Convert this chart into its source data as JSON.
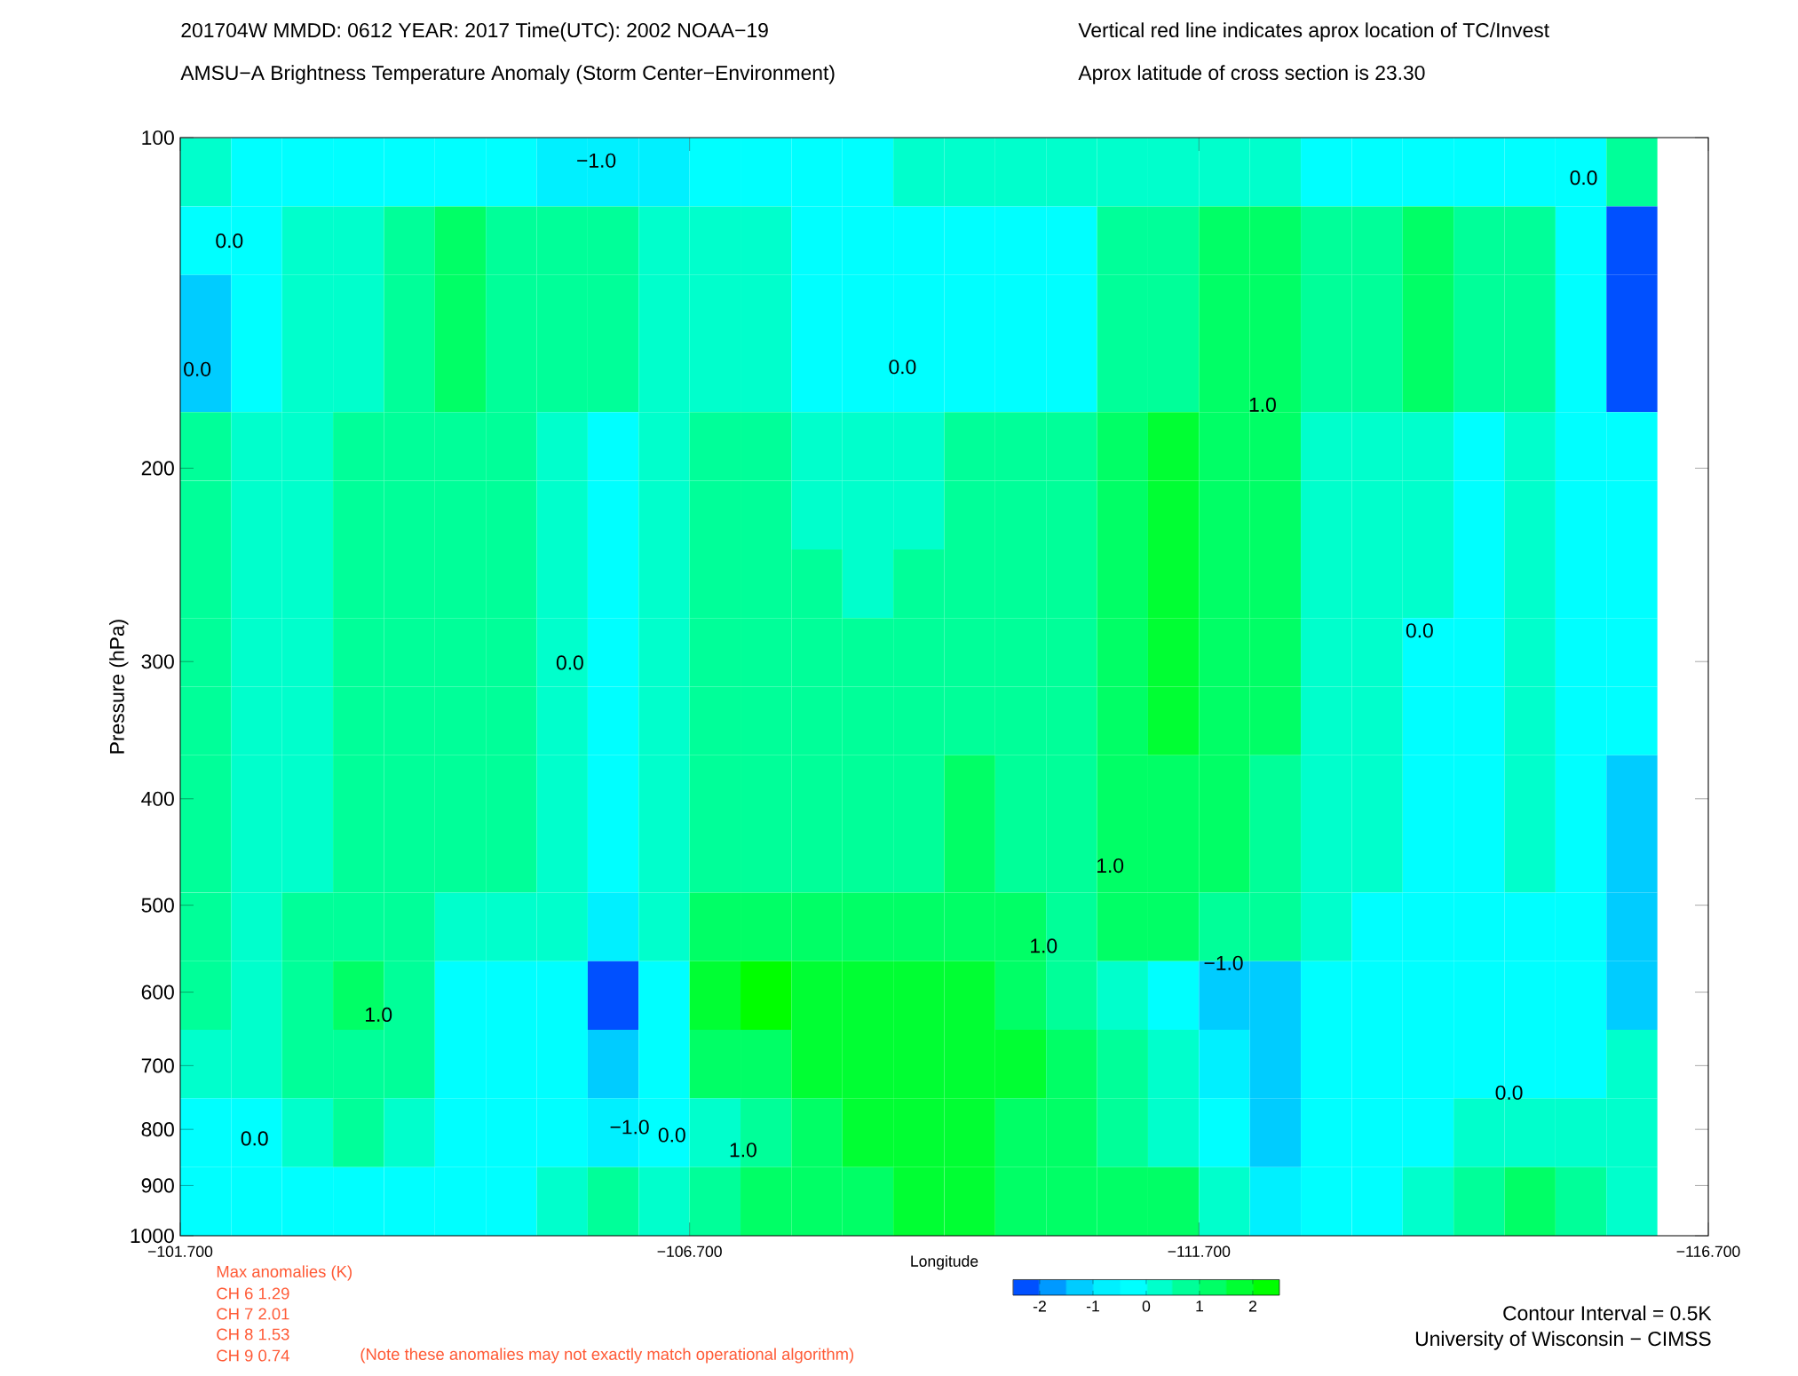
{
  "chart_data": {
    "type": "heatmap",
    "title": "201704W  MMDD: 0612 YEAR: 2017 Time(UTC): 2002 NOAA−19",
    "subtitle": "AMSU−A Brightness Temperature Anomaly (Storm Center−Environment)",
    "xlabel": "Longitude",
    "ylabel": "Pressure (hPa)",
    "x": [
      -101.95,
      -102.45,
      -102.95,
      -103.45,
      -103.95,
      -104.45,
      -104.95,
      -105.45,
      -105.95,
      -106.45,
      -106.95,
      -107.45,
      -107.95,
      -108.45,
      -108.95,
      -109.45,
      -109.95,
      -110.45,
      -110.95,
      -111.45,
      -111.95,
      -112.45,
      -112.95,
      -113.45,
      -113.95,
      -114.45,
      -114.95,
      -115.45,
      -115.95
    ],
    "y": [
      107.5,
      124.1,
      143.3,
      165.5,
      191.1,
      220.7,
      254.8,
      294.3,
      339.8,
      392.4,
      453.1,
      523.3,
      604.3,
      697.8,
      805.8,
      930.6
    ],
    "cells": [
      [
        0.25,
        -0.25,
        -0.25,
        -0.25,
        -0.25,
        -0.25,
        -0.25,
        -0.75,
        -0.75,
        -0.75,
        -0.25,
        -0.25,
        -0.25,
        -0.25,
        0.25,
        0.25,
        0.25,
        0.25,
        0.25,
        0.25,
        0.25,
        0.25,
        -0.25,
        -0.25,
        -0.25,
        -0.25,
        -0.25,
        -0.25,
        0.75
      ],
      [
        -0.25,
        -0.25,
        0.25,
        0.25,
        0.75,
        1.25,
        0.75,
        0.75,
        0.75,
        0.25,
        0.25,
        0.25,
        -0.25,
        -0.25,
        -0.25,
        -0.25,
        -0.25,
        -0.25,
        0.75,
        0.75,
        1.25,
        1.25,
        0.75,
        0.75,
        1.25,
        0.75,
        0.75,
        -0.25,
        -2.25
      ],
      [
        -1.25,
        -0.25,
        0.25,
        0.25,
        0.75,
        1.25,
        0.75,
        0.75,
        0.75,
        0.25,
        0.25,
        0.25,
        -0.25,
        -0.25,
        -0.25,
        -0.25,
        -0.25,
        -0.25,
        0.75,
        0.75,
        1.25,
        1.25,
        0.75,
        0.75,
        1.25,
        0.75,
        0.75,
        -0.25,
        -2.25
      ],
      [
        -1.25,
        -0.25,
        0.25,
        0.25,
        0.75,
        1.25,
        0.75,
        0.75,
        0.75,
        0.25,
        0.25,
        0.25,
        -0.25,
        -0.25,
        -0.25,
        -0.25,
        -0.25,
        -0.25,
        0.75,
        0.75,
        1.25,
        1.25,
        0.75,
        0.75,
        1.25,
        0.75,
        0.75,
        -0.25,
        -2.25
      ],
      [
        0.75,
        0.25,
        0.25,
        0.75,
        0.75,
        0.75,
        0.75,
        0.25,
        -0.25,
        0.25,
        0.75,
        0.75,
        0.25,
        0.25,
        0.25,
        0.75,
        0.75,
        0.75,
        1.25,
        1.75,
        1.25,
        1.25,
        0.25,
        0.25,
        0.25,
        -0.25,
        0.25,
        -0.25,
        -0.25
      ],
      [
        0.75,
        0.25,
        0.25,
        0.75,
        0.75,
        0.75,
        0.75,
        0.25,
        -0.25,
        0.25,
        0.75,
        0.75,
        0.25,
        0.25,
        0.25,
        0.75,
        0.75,
        0.75,
        1.25,
        1.75,
        1.25,
        1.25,
        0.25,
        0.25,
        0.25,
        -0.25,
        0.25,
        -0.25,
        -0.25
      ],
      [
        0.75,
        0.25,
        0.25,
        0.75,
        0.75,
        0.75,
        0.75,
        0.25,
        -0.25,
        0.25,
        0.75,
        0.75,
        0.75,
        0.25,
        0.75,
        0.75,
        0.75,
        0.75,
        1.25,
        1.75,
        1.25,
        1.25,
        0.25,
        0.25,
        0.25,
        -0.25,
        0.25,
        -0.25,
        -0.25
      ],
      [
        0.75,
        0.25,
        0.25,
        0.75,
        0.75,
        0.75,
        0.75,
        0.25,
        -0.25,
        0.25,
        0.75,
        0.75,
        0.75,
        0.75,
        0.75,
        0.75,
        0.75,
        0.75,
        1.25,
        1.75,
        1.25,
        1.25,
        0.25,
        0.25,
        -0.25,
        -0.25,
        0.25,
        -0.25,
        -0.25
      ],
      [
        0.75,
        0.25,
        0.25,
        0.75,
        0.75,
        0.75,
        0.75,
        0.25,
        -0.25,
        0.25,
        0.75,
        0.75,
        0.75,
        0.75,
        0.75,
        0.75,
        0.75,
        0.75,
        1.25,
        1.75,
        1.25,
        1.25,
        0.25,
        0.25,
        -0.25,
        -0.25,
        0.25,
        -0.25,
        -0.25
      ],
      [
        0.75,
        0.25,
        0.25,
        0.75,
        0.75,
        0.75,
        0.75,
        0.25,
        -0.25,
        0.25,
        0.75,
        0.75,
        0.75,
        0.75,
        0.75,
        1.25,
        0.75,
        0.75,
        1.25,
        1.25,
        1.25,
        0.75,
        0.25,
        0.25,
        -0.25,
        -0.25,
        0.25,
        -0.25,
        -1.25
      ],
      [
        0.75,
        0.25,
        0.25,
        0.75,
        0.75,
        0.75,
        0.75,
        0.25,
        -0.25,
        0.25,
        0.75,
        0.75,
        0.75,
        0.75,
        0.75,
        1.25,
        0.75,
        0.75,
        1.25,
        1.25,
        1.25,
        0.75,
        0.25,
        0.25,
        -0.25,
        -0.25,
        0.25,
        -0.25,
        -1.25
      ],
      [
        0.75,
        0.25,
        0.75,
        0.75,
        0.75,
        0.25,
        0.25,
        0.25,
        -0.75,
        0.25,
        1.25,
        1.25,
        1.25,
        1.25,
        1.25,
        1.25,
        1.25,
        0.75,
        1.25,
        1.25,
        0.75,
        0.75,
        0.25,
        -0.25,
        -0.25,
        -0.25,
        -0.25,
        -0.25,
        -1.25
      ],
      [
        0.75,
        0.25,
        0.75,
        1.25,
        0.75,
        -0.25,
        -0.25,
        -0.25,
        -2.25,
        -0.25,
        1.75,
        2.25,
        1.75,
        1.75,
        1.75,
        1.75,
        1.25,
        0.75,
        0.25,
        -0.25,
        -1.25,
        -1.25,
        -0.25,
        -0.25,
        -0.25,
        -0.25,
        -0.25,
        -0.25,
        -1.25
      ],
      [
        0.25,
        0.25,
        0.75,
        0.75,
        0.75,
        -0.25,
        -0.25,
        -0.25,
        -1.25,
        -0.25,
        1.25,
        1.25,
        1.75,
        1.75,
        1.75,
        1.75,
        1.75,
        1.25,
        0.75,
        0.25,
        -0.75,
        -1.25,
        -0.25,
        -0.25,
        -0.25,
        -0.25,
        -0.25,
        -0.25,
        0.25
      ],
      [
        -0.25,
        -0.25,
        0.25,
        0.75,
        0.25,
        -0.25,
        -0.25,
        -0.25,
        -0.75,
        -0.25,
        0.25,
        0.75,
        1.25,
        1.75,
        1.75,
        1.75,
        1.25,
        1.25,
        0.75,
        0.25,
        -0.25,
        -1.25,
        -0.25,
        -0.25,
        -0.25,
        0.25,
        0.25,
        0.25,
        0.25
      ],
      [
        -0.25,
        -0.25,
        -0.25,
        -0.25,
        -0.25,
        -0.25,
        -0.25,
        0.25,
        0.75,
        0.25,
        0.75,
        1.25,
        1.25,
        1.25,
        1.75,
        1.75,
        1.25,
        1.25,
        1.25,
        1.25,
        0.25,
        -0.75,
        -0.25,
        -0.25,
        0.25,
        0.75,
        1.25,
        0.75,
        0.25
      ]
    ],
    "clim": [
      -2.5,
      2.5
    ],
    "cticks": [
      -2,
      -1,
      0,
      1,
      2
    ],
    "log": "y",
    "xlim": [
      -101.7,
      -116.7
    ],
    "ylim": [
      1000,
      100
    ],
    "xticks": [
      {
        "value": -101.7,
        "label": "−101.700"
      },
      {
        "value": -106.7,
        "label": "−106.700"
      },
      {
        "value": -111.7,
        "label": "−111.700"
      },
      {
        "value": -116.7,
        "label": "−116.700"
      }
    ],
    "yticks": [
      100,
      200,
      300,
      400,
      500,
      600,
      700,
      800,
      900,
      1000
    ],
    "annotations": [
      "−1.0",
      "0.0",
      "0.0",
      "0.0",
      "1.0",
      "0.0",
      "0.0",
      "0.0",
      "1.0",
      "1.0",
      "−1.0",
      "1.0",
      "0.0",
      "−1.0",
      "0.0",
      "1.0",
      "0.0",
      "Vertical red line indicates aprox location of TC/Invest",
      "Aprox latitude of cross section is 23.30",
      "Max anomalies (K)",
      "CH 6  1.29",
      "CH 7  2.01",
      "CH 8  1.53",
      "CH 9  0.74",
      "(Note these anomalies may not exactly match operational algorithm)",
      "Contour Interval = 0.5K",
      "University of Wisconsin − CIMSS"
    ]
  }
}
